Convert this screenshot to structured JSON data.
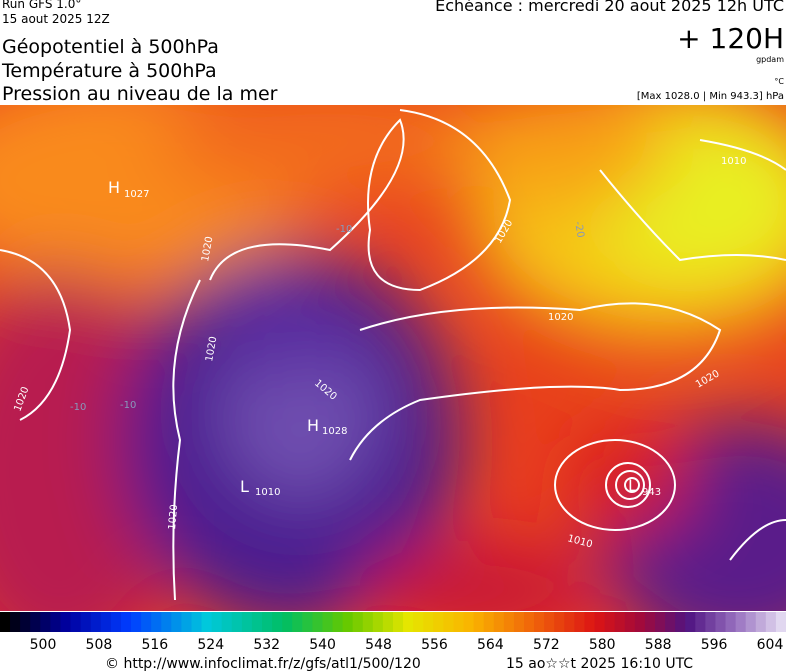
{
  "header": {
    "run": "Run GFS 1.0°",
    "run_date": "15 aout 2025 12Z",
    "titles": [
      "Géopotentiel à 500hPa",
      "Température à 500hPa",
      "Pression au niveau de la mer"
    ],
    "echeance": "Echéance : mercredi 20 aout 2025 12h UTC",
    "lead": "+ 120H",
    "unit_geo": "gpdam",
    "unit_temp": "°C",
    "pressure_range": "[Max 1028.0 | Min 943.3] hPa"
  },
  "map": {
    "highs": [
      {
        "letter": "H",
        "value": "1027"
      },
      {
        "letter": "H",
        "value": "1028"
      }
    ],
    "lows": [
      {
        "letter": "L",
        "value": "1010"
      },
      {
        "letter": "L",
        "value": "943"
      }
    ],
    "isobar_labels": [
      "1020",
      "1020",
      "1020",
      "1020",
      "1020",
      "1020",
      "1020",
      "1010",
      "1010",
      "1020"
    ],
    "isotherm_labels": [
      "-10",
      "-10",
      "-10",
      "-20"
    ]
  },
  "colorbar": {
    "labels": [
      500,
      508,
      516,
      524,
      532,
      540,
      548,
      556,
      564,
      572,
      580,
      588,
      596,
      604
    ]
  },
  "footer": {
    "source": "© http://www.infoclimat.fr/z/gfs/atl1/500/120",
    "generated": "15 ao☆☆t 2025 16:10 UTC"
  }
}
